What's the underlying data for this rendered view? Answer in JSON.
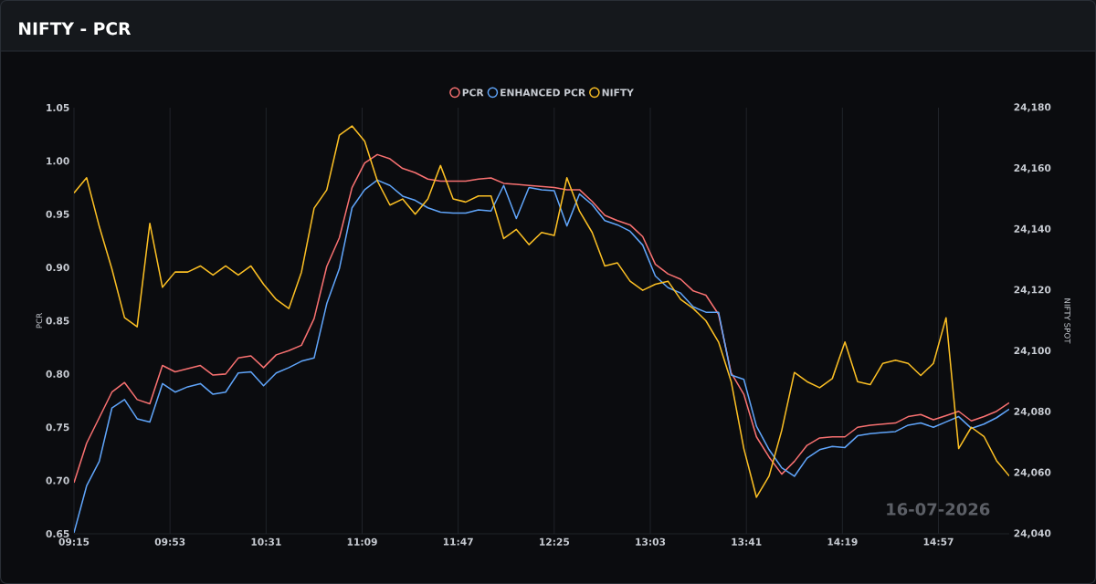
{
  "chart_data": {
    "type": "line",
    "title": "NIFTY - PCR",
    "ylabel": "PCR",
    "y2label": "NIFTY SPOT",
    "x": [
      "2026-07-16T09:15",
      "2026-07-16T09:20",
      "2026-07-16T09:25",
      "2026-07-16T09:30",
      "2026-07-16T09:35",
      "2026-07-16T09:40",
      "2026-07-16T09:45",
      "2026-07-16T09:50",
      "2026-07-16T09:55",
      "2026-07-16T10:00",
      "2026-07-16T10:05",
      "2026-07-16T10:10",
      "2026-07-16T10:15",
      "2026-07-16T10:20",
      "2026-07-16T10:25",
      "2026-07-16T10:30",
      "2026-07-16T10:35",
      "2026-07-16T10:40",
      "2026-07-16T10:45",
      "2026-07-16T10:50",
      "2026-07-16T10:55",
      "2026-07-16T11:00",
      "2026-07-16T11:05",
      "2026-07-16T11:10",
      "2026-07-16T11:15",
      "2026-07-16T11:20",
      "2026-07-16T11:25",
      "2026-07-16T11:30",
      "2026-07-16T11:35",
      "2026-07-16T11:40",
      "2026-07-16T11:45",
      "2026-07-16T11:50",
      "2026-07-16T11:55",
      "2026-07-16T12:00",
      "2026-07-16T12:05",
      "2026-07-16T12:10",
      "2026-07-16T12:15",
      "2026-07-16T12:20",
      "2026-07-16T12:25",
      "2026-07-16T12:30",
      "2026-07-16T12:35",
      "2026-07-16T12:40",
      "2026-07-16T12:45",
      "2026-07-16T12:50",
      "2026-07-16T12:55",
      "2026-07-16T13:00",
      "2026-07-16T13:05",
      "2026-07-16T13:10",
      "2026-07-16T13:15",
      "2026-07-16T13:20",
      "2026-07-16T13:25",
      "2026-07-16T13:30",
      "2026-07-16T13:35",
      "2026-07-16T13:40",
      "2026-07-16T13:45",
      "2026-07-16T13:50",
      "2026-07-16T13:55",
      "2026-07-16T14:00",
      "2026-07-16T14:05",
      "2026-07-16T14:10",
      "2026-07-16T14:15",
      "2026-07-16T14:20",
      "2026-07-16T14:25",
      "2026-07-16T14:30",
      "2026-07-16T14:35",
      "2026-07-16T14:40",
      "2026-07-16T14:45",
      "2026-07-16T14:50",
      "2026-07-16T14:55",
      "2026-07-16T15:00",
      "2026-07-16T15:05",
      "2026-07-16T15:10",
      "2026-07-16T15:15",
      "2026-07-16T15:20",
      "2026-07-16T15:25"
    ],
    "series": [
      {
        "name": "PCR",
        "color": "#f87171",
        "values": [
          0.698,
          0.735,
          0.759,
          0.783,
          0.792,
          0.776,
          0.772,
          0.808,
          0.802,
          0.805,
          0.808,
          0.799,
          0.8,
          0.815,
          0.817,
          0.806,
          0.818,
          0.822,
          0.827,
          0.852,
          0.901,
          0.928,
          0.975,
          0.998,
          1.006,
          1.002,
          0.993,
          0.989,
          0.983,
          0.981,
          0.981,
          0.981,
          0.983,
          0.984,
          0.979,
          0.978,
          0.977,
          0.976,
          0.975,
          0.973,
          0.973,
          0.962,
          0.949,
          0.944,
          0.94,
          0.929,
          0.903,
          0.894,
          0.889,
          0.878,
          0.874,
          0.856,
          0.801,
          0.781,
          0.741,
          0.722,
          0.706,
          0.718,
          0.733,
          0.74,
          0.741,
          0.741,
          0.75,
          0.752,
          0.753,
          0.754,
          0.76,
          0.762,
          0.757,
          0.761,
          0.765,
          0.756,
          0.76,
          0.765,
          0.773
        ]
      },
      {
        "name": "ENHANCED PCR",
        "color": "#60a5fa",
        "values": [
          0.651,
          0.695,
          0.718,
          0.768,
          0.776,
          0.758,
          0.755,
          0.791,
          0.783,
          0.788,
          0.791,
          0.781,
          0.783,
          0.801,
          0.802,
          0.789,
          0.801,
          0.806,
          0.812,
          0.815,
          0.866,
          0.899,
          0.956,
          0.973,
          0.982,
          0.977,
          0.967,
          0.963,
          0.956,
          0.952,
          0.951,
          0.951,
          0.954,
          0.953,
          0.977,
          0.946,
          0.975,
          0.973,
          0.972,
          0.939,
          0.969,
          0.959,
          0.944,
          0.94,
          0.934,
          0.921,
          0.892,
          0.881,
          0.876,
          0.863,
          0.858,
          0.858,
          0.799,
          0.795,
          0.751,
          0.729,
          0.712,
          0.704,
          0.721,
          0.729,
          0.732,
          0.731,
          0.742,
          0.744,
          0.745,
          0.746,
          0.752,
          0.754,
          0.75,
          0.755,
          0.76,
          0.749,
          0.753,
          0.759,
          0.767
        ]
      },
      {
        "name": "NIFTY",
        "color": "#fbbf24",
        "axis": "y2",
        "values": [
          24152,
          24157,
          24141,
          24127,
          24111,
          24108,
          24142,
          24121,
          24126,
          24126,
          24128,
          24125,
          24128,
          24125,
          24128,
          24122,
          24117,
          24114,
          24126,
          24147,
          24153,
          24171,
          24174,
          24169,
          24156,
          24148,
          24150,
          24145,
          24150,
          24161,
          24150,
          24149,
          24151,
          24151,
          24137,
          24140,
          24135,
          24139,
          24138,
          24157,
          24146,
          24139,
          24128,
          24129,
          24123,
          24120,
          24122,
          24123,
          24117,
          24114,
          24110,
          24103,
          24090,
          24068,
          24052,
          24059,
          24074,
          24093,
          24090,
          24088,
          24091,
          24103,
          24090,
          24089,
          24096,
          24097,
          24096,
          24092,
          24096,
          24111,
          24068,
          24075,
          24072,
          24064,
          24059
        ]
      }
    ],
    "xlim": [
      "2026-07-16T09:15",
      "2026-07-16T15:25"
    ],
    "xticks": [
      {
        "value": "2026-07-16T09:15",
        "label": "09:15"
      },
      {
        "value": "2026-07-16T09:53",
        "label": "09:53"
      },
      {
        "value": "2026-07-16T10:31",
        "label": "10:31"
      },
      {
        "value": "2026-07-16T11:09",
        "label": "11:09"
      },
      {
        "value": "2026-07-16T11:47",
        "label": "11:47"
      },
      {
        "value": "2026-07-16T12:25",
        "label": "12:25"
      },
      {
        "value": "2026-07-16T13:03",
        "label": "13:03"
      },
      {
        "value": "2026-07-16T13:41",
        "label": "13:41"
      },
      {
        "value": "2026-07-16T14:19",
        "label": "14:19"
      },
      {
        "value": "2026-07-16T14:57",
        "label": "14:57"
      }
    ],
    "ylim": [
      0.65,
      1.05
    ],
    "yticks": [
      0.65,
      {
        "value": 0.7,
        "label": "0.70"
      },
      0.75,
      {
        "value": 0.8,
        "label": "0.80"
      },
      0.85,
      {
        "value": 0.9,
        "label": "0.90"
      },
      0.95,
      {
        "value": 1.0,
        "label": "1.00"
      },
      1.05
    ],
    "y2lim": [
      24040,
      24180
    ],
    "y2ticks": [
      {
        "value": 24040,
        "label": "24,040"
      },
      {
        "value": 24060,
        "label": "24,060"
      },
      {
        "value": 24080,
        "label": "24,080"
      },
      {
        "value": 24100,
        "label": "24,100"
      },
      {
        "value": 24120,
        "label": "24,120"
      },
      {
        "value": 24140,
        "label": "24,140"
      },
      {
        "value": 24160,
        "label": "24,160"
      },
      {
        "value": 24180,
        "label": "24,180"
      }
    ],
    "grid": "x",
    "legend": "top",
    "annotations": [
      "16-07-2026"
    ]
  }
}
